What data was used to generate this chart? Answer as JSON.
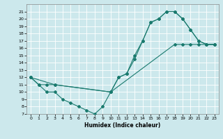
{
  "xlabel": "Humidex (Indice chaleur)",
  "xlim": [
    -0.5,
    23.5
  ],
  "ylim": [
    7,
    22
  ],
  "yticks": [
    7,
    8,
    9,
    10,
    11,
    12,
    13,
    14,
    15,
    16,
    17,
    18,
    19,
    20,
    21
  ],
  "xticks": [
    0,
    1,
    2,
    3,
    4,
    5,
    6,
    7,
    8,
    9,
    10,
    11,
    12,
    13,
    14,
    15,
    16,
    17,
    18,
    19,
    20,
    21,
    22,
    23
  ],
  "bg_color": "#cce8ec",
  "grid_color": "#b0d8dc",
  "line_color": "#1a7a6e",
  "lines": [
    {
      "x": [
        0,
        1,
        2,
        3,
        4,
        5,
        6,
        7,
        8,
        9,
        10,
        11,
        12,
        13,
        14,
        15,
        16,
        17,
        18,
        19,
        20,
        21,
        22,
        23
      ],
      "y": [
        12,
        11,
        10,
        10,
        9,
        8.5,
        8,
        7.5,
        7,
        8,
        10,
        12,
        12.5,
        15,
        17,
        19.5,
        20,
        21,
        21,
        20,
        18.5,
        17,
        16.5,
        16.5
      ]
    },
    {
      "x": [
        0,
        1,
        2,
        3,
        10,
        18,
        19,
        20,
        21,
        22,
        23
      ],
      "y": [
        12,
        11,
        11,
        11,
        10,
        16.5,
        16.5,
        16.5,
        16.5,
        16.5,
        16.5
      ]
    },
    {
      "x": [
        0,
        3,
        10,
        11,
        12,
        13,
        14,
        15,
        16,
        17,
        18,
        19,
        20,
        21,
        22,
        23
      ],
      "y": [
        12,
        11,
        10,
        12,
        12.5,
        14.5,
        17,
        19.5,
        20,
        21,
        21,
        20,
        18.5,
        17,
        16.5,
        16.5
      ]
    }
  ]
}
